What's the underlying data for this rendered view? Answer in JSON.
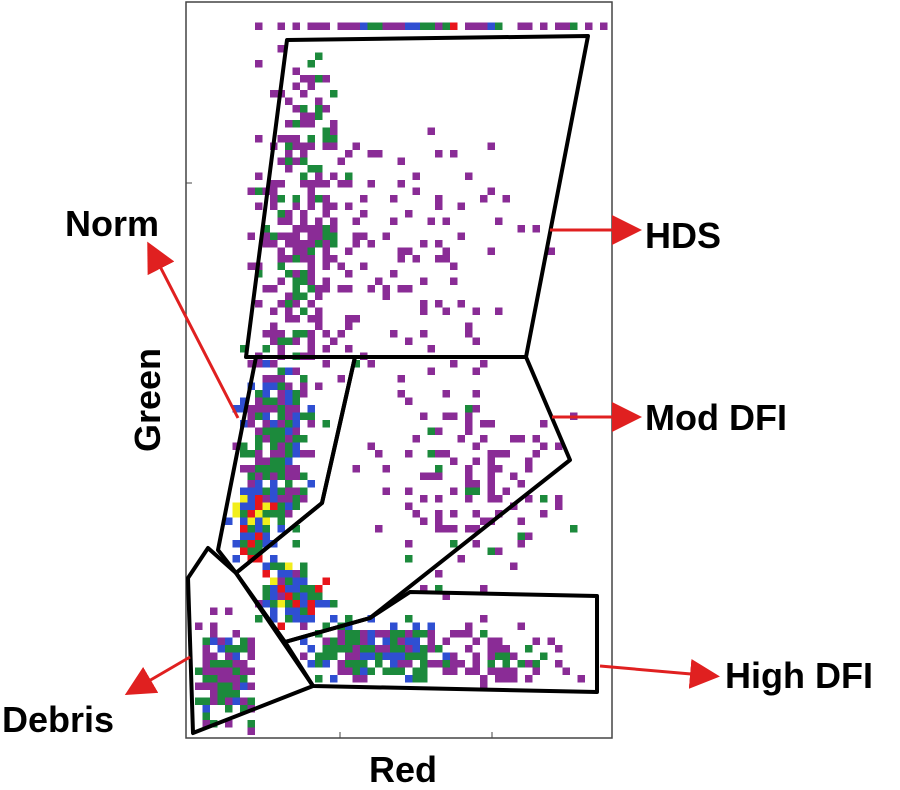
{
  "labels": {
    "norm": "Norm",
    "hds": "HDS",
    "mod_dfi": "Mod DFI",
    "high_dfi": "High DFI",
    "debris": "Debris"
  },
  "axes": {
    "x": "Red",
    "y": "Green"
  }
}
